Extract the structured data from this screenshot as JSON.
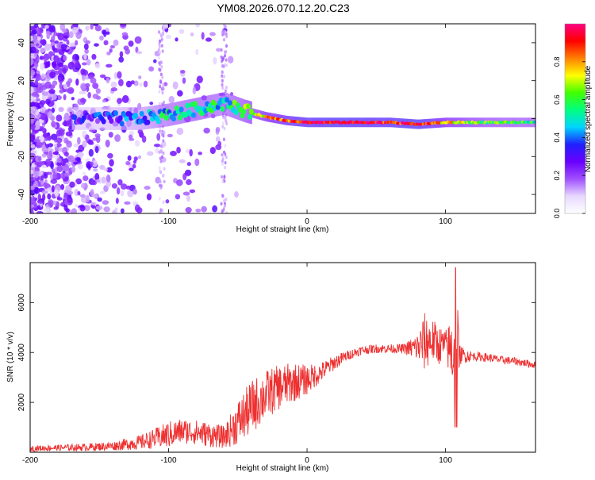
{
  "figure_title": "YM08.2026.070.12.20.C23",
  "chart_data": [
    {
      "type": "heatmap",
      "title": "YM08.2026.070.12.20.C23",
      "xlabel": "Height of straight line (km)",
      "ylabel": "Frequency (Hz)",
      "xlim": [
        -200,
        165
      ],
      "ylim": [
        -50,
        50
      ],
      "x_ticks": [
        -200,
        -100,
        0,
        100
      ],
      "y_ticks": [
        -40,
        -20,
        0,
        20,
        40
      ],
      "colorbar": {
        "label": "Normalized spectral amplitude",
        "range": [
          0.0,
          1.0
        ],
        "ticks": [
          0.0,
          0.2,
          0.4,
          0.6,
          0.8
        ],
        "tick_labels": [
          "0.0",
          "0.2",
          "0.4",
          "0.6",
          "0.8"
        ],
        "colormap": [
          "#ffffff",
          "#e8d8ff",
          "#a050ff",
          "#6a00ff",
          "#2020ff",
          "#00d4ff",
          "#00ff80",
          "#40ff00",
          "#ffff00",
          "#ff8000",
          "#ff0000",
          "#ff0080"
        ]
      },
      "ridge": [
        {
          "x": -150,
          "freq": 0,
          "amp": 0.3
        },
        {
          "x": -120,
          "freq": 0,
          "amp": 0.4
        },
        {
          "x": -100,
          "freq": 2,
          "amp": 0.5
        },
        {
          "x": -80,
          "freq": 5,
          "amp": 0.55
        },
        {
          "x": -60,
          "freq": 8,
          "amp": 0.5
        },
        {
          "x": -45,
          "freq": 4,
          "amp": 0.6
        },
        {
          "x": -30,
          "freq": 1,
          "amp": 0.75
        },
        {
          "x": -15,
          "freq": -1,
          "amp": 0.85
        },
        {
          "x": 0,
          "freq": -2,
          "amp": 0.9
        },
        {
          "x": 20,
          "freq": -2,
          "amp": 0.95
        },
        {
          "x": 60,
          "freq": -2,
          "amp": 0.9
        },
        {
          "x": 80,
          "freq": -3,
          "amp": 0.95
        },
        {
          "x": 100,
          "freq": -2,
          "amp": 0.75
        },
        {
          "x": 130,
          "freq": -2,
          "amp": 0.6
        },
        {
          "x": 165,
          "freq": -2,
          "amp": 0.55
        }
      ]
    },
    {
      "type": "line",
      "xlabel": "Height of straight line (km)",
      "ylabel": "SNR (10 * v/v)",
      "xlim": [
        -200,
        165
      ],
      "ylim": [
        0,
        7600
      ],
      "x_ticks": [
        -200,
        -100,
        0,
        100
      ],
      "y_ticks": [
        2000,
        4000,
        6000
      ],
      "line_color": "#ee3030",
      "series": [
        {
          "name": "SNR",
          "x": [
            -200,
            -180,
            -160,
            -140,
            -120,
            -110,
            -100,
            -90,
            -80,
            -70,
            -60,
            -50,
            -40,
            -30,
            -20,
            -10,
            0,
            10,
            20,
            30,
            40,
            50,
            60,
            70,
            80,
            85,
            90,
            95,
            100,
            105,
            108,
            110,
            120,
            130,
            140,
            150,
            165
          ],
          "values": [
            150,
            180,
            200,
            250,
            400,
            550,
            700,
            850,
            800,
            700,
            600,
            1200,
            1800,
            2300,
            2600,
            2800,
            2900,
            3200,
            3600,
            3900,
            4100,
            4150,
            4150,
            4150,
            4200,
            4400,
            4500,
            4300,
            4300,
            4000,
            4300,
            3900,
            3850,
            3800,
            3700,
            3650,
            3500
          ],
          "noise": [
            120,
            120,
            150,
            180,
            300,
            400,
            550,
            500,
            500,
            500,
            450,
            900,
            1100,
            1000,
            900,
            800,
            600,
            400,
            300,
            200,
            180,
            180,
            180,
            200,
            600,
            1200,
            900,
            800,
            600,
            1500,
            2500,
            400,
            180,
            180,
            160,
            160,
            150
          ]
        }
      ]
    }
  ]
}
